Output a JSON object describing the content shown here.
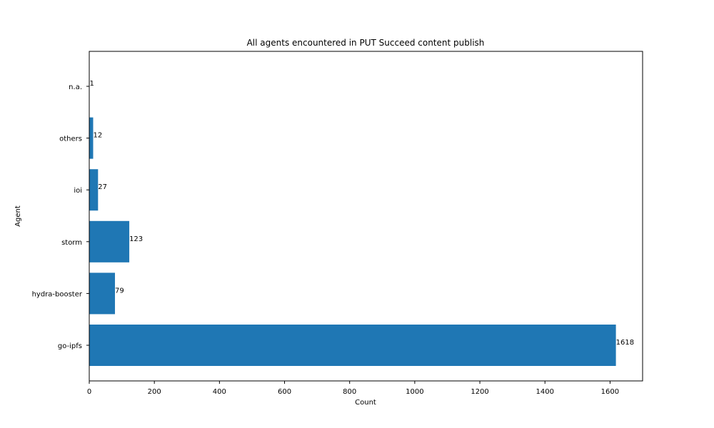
{
  "chart_data": {
    "type": "bar",
    "orientation": "horizontal",
    "title": "All agents encountered in PUT Succeed content publish",
    "xlabel": "Count",
    "ylabel": "Agent",
    "categories": [
      "go-ipfs",
      "hydra-booster",
      "storm",
      "ioi",
      "others",
      "n.a."
    ],
    "values": [
      1618,
      79,
      123,
      27,
      12,
      1
    ],
    "data_labels": [
      "1618",
      "79",
      "123",
      "27",
      "12",
      "1"
    ],
    "xlim": [
      0,
      1700
    ],
    "xticks": [
      0,
      200,
      400,
      600,
      800,
      1000,
      1200,
      1400,
      1600
    ],
    "xtick_labels": [
      "0",
      "200",
      "400",
      "600",
      "800",
      "1000",
      "1200",
      "1400",
      "1600"
    ],
    "grid": false,
    "bar_color": "#1f77b4"
  }
}
